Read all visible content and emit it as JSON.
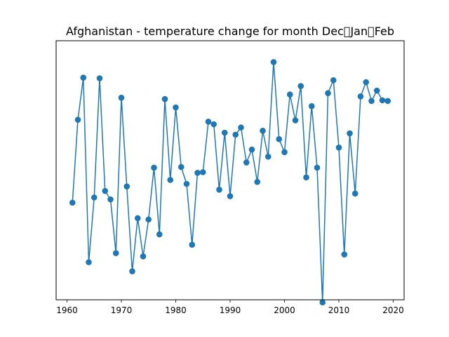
{
  "chart_data": {
    "type": "line",
    "title": "Afghanistan - temperature change for month Dec\u0000Jan\u0000Feb",
    "xlabel": "",
    "ylabel": "",
    "xlim": [
      1958,
      2022
    ],
    "ylim": [
      -1.9,
      2.1
    ],
    "x_ticks": [
      1960,
      1970,
      1980,
      1990,
      2000,
      2010,
      2020
    ],
    "y_ticks_visible": false,
    "grid": false,
    "legend": "none",
    "series": [
      {
        "color": "#1f77b4",
        "marker": "circle",
        "x": [
          1961,
          1962,
          1963,
          1964,
          1965,
          1966,
          1967,
          1968,
          1969,
          1970,
          1971,
          1972,
          1973,
          1974,
          1975,
          1976,
          1977,
          1978,
          1979,
          1980,
          1981,
          1982,
          1983,
          1984,
          1985,
          1986,
          1987,
          1988,
          1989,
          1990,
          1991,
          1992,
          1993,
          1994,
          1995,
          1996,
          1997,
          1998,
          1999,
          2000,
          2001,
          2002,
          2003,
          2004,
          2005,
          2006,
          2007,
          2008,
          2009,
          2010,
          2011,
          2012,
          2013,
          2014,
          2015,
          2016,
          2017,
          2018,
          2019
        ],
        "y": [
          -0.4,
          0.88,
          1.53,
          -1.32,
          -0.32,
          1.52,
          -0.22,
          -0.35,
          -1.18,
          1.22,
          -0.15,
          -1.46,
          -0.64,
          -1.23,
          -0.66,
          0.14,
          -0.89,
          1.2,
          -0.05,
          1.07,
          0.15,
          -0.11,
          -1.05,
          0.06,
          0.07,
          0.85,
          0.81,
          -0.2,
          0.68,
          -0.3,
          0.65,
          0.76,
          0.22,
          0.42,
          -0.08,
          0.71,
          0.31,
          1.77,
          0.58,
          0.38,
          1.27,
          0.87,
          1.4,
          -0.01,
          1.09,
          0.14,
          -1.94,
          1.29,
          1.49,
          0.45,
          -1.2,
          0.67,
          -0.26,
          1.24,
          1.46,
          1.17,
          1.33,
          1.18,
          1.17
        ]
      }
    ]
  }
}
